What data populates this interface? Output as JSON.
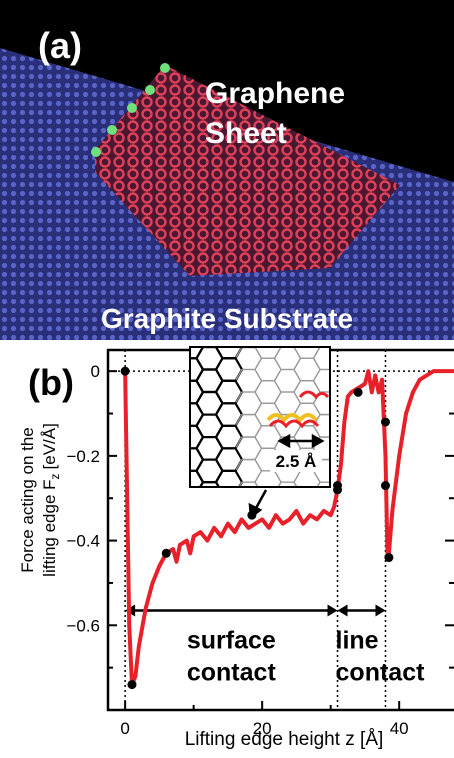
{
  "panel_a": {
    "label": "(a)",
    "annotations": [
      "Graphene",
      "Sheet"
    ],
    "substrate_label": "Graphite Substrate"
  },
  "chart_data": {
    "type": "line",
    "panel_label": "(b)",
    "xlabel": "Lifting edge height z [Å]",
    "ylabel": [
      "Force acting on the",
      "lifting edge F",
      "z",
      "[eV/Å]"
    ],
    "x": [
      0,
      0.3,
      0.6,
      1,
      1.5,
      2,
      3,
      4,
      5,
      6,
      7,
      7.5,
      8,
      9,
      9.5,
      10,
      11,
      12,
      13,
      14,
      15,
      16,
      17,
      18,
      19,
      20,
      21,
      22,
      23,
      24,
      25,
      26,
      27,
      28,
      29,
      30,
      30.5,
      31,
      31.5,
      32,
      32.5,
      33,
      34,
      35,
      35.5,
      36,
      36.5,
      37,
      37.5,
      38,
      38.3,
      38.5,
      39,
      40,
      41,
      42,
      43,
      44,
      45,
      46,
      47,
      48
    ],
    "values": [
      0,
      -0.3,
      -0.6,
      -0.74,
      -0.72,
      -0.65,
      -0.56,
      -0.5,
      -0.46,
      -0.43,
      -0.42,
      -0.45,
      -0.41,
      -0.4,
      -0.43,
      -0.39,
      -0.38,
      -0.4,
      -0.37,
      -0.39,
      -0.36,
      -0.38,
      -0.35,
      -0.37,
      -0.36,
      -0.35,
      -0.37,
      -0.34,
      -0.36,
      -0.35,
      -0.33,
      -0.36,
      -0.34,
      -0.35,
      -0.33,
      -0.34,
      -0.32,
      -0.28,
      -0.22,
      -0.12,
      -0.06,
      -0.05,
      -0.04,
      -0.03,
      0,
      -0.05,
      -0.01,
      -0.05,
      -0.02,
      -0.2,
      -0.44,
      -0.43,
      -0.33,
      -0.2,
      -0.1,
      -0.05,
      -0.02,
      -0.01,
      0,
      0,
      0,
      0
    ],
    "color": "#e8202a",
    "markers": {
      "x": [
        0,
        1,
        6,
        18.5,
        31,
        31,
        34,
        38,
        38,
        38.5
      ],
      "values": [
        0,
        -0.74,
        -0.43,
        -0.34,
        -0.27,
        -0.28,
        -0.05,
        -0.12,
        -0.27,
        -0.44
      ],
      "color": "#000000"
    },
    "xlim": [
      -2.5,
      48
    ],
    "ylim": [
      -0.8,
      0.05
    ],
    "xticks": [
      0,
      20,
      40
    ],
    "yticks": [
      0,
      {
        "value": -0.2,
        "label": "−0.2"
      },
      {
        "value": -0.4,
        "label": "−0.4"
      },
      {
        "value": -0.6,
        "label": "−0.6"
      }
    ],
    "xminor": [
      10,
      30
    ],
    "yminor": [
      -0.1,
      -0.3,
      -0.5,
      -0.7
    ],
    "vlines": [
      0,
      31,
      38
    ],
    "hline": 0,
    "spans": [
      {
        "from": 0,
        "to": 31,
        "y": -0.565,
        "label": [
          "surface",
          "contact"
        ]
      },
      {
        "from": 31,
        "to": 38,
        "y": -0.565,
        "label": [
          "line",
          "contact"
        ]
      }
    ],
    "inset_label": "2.5 Å"
  }
}
